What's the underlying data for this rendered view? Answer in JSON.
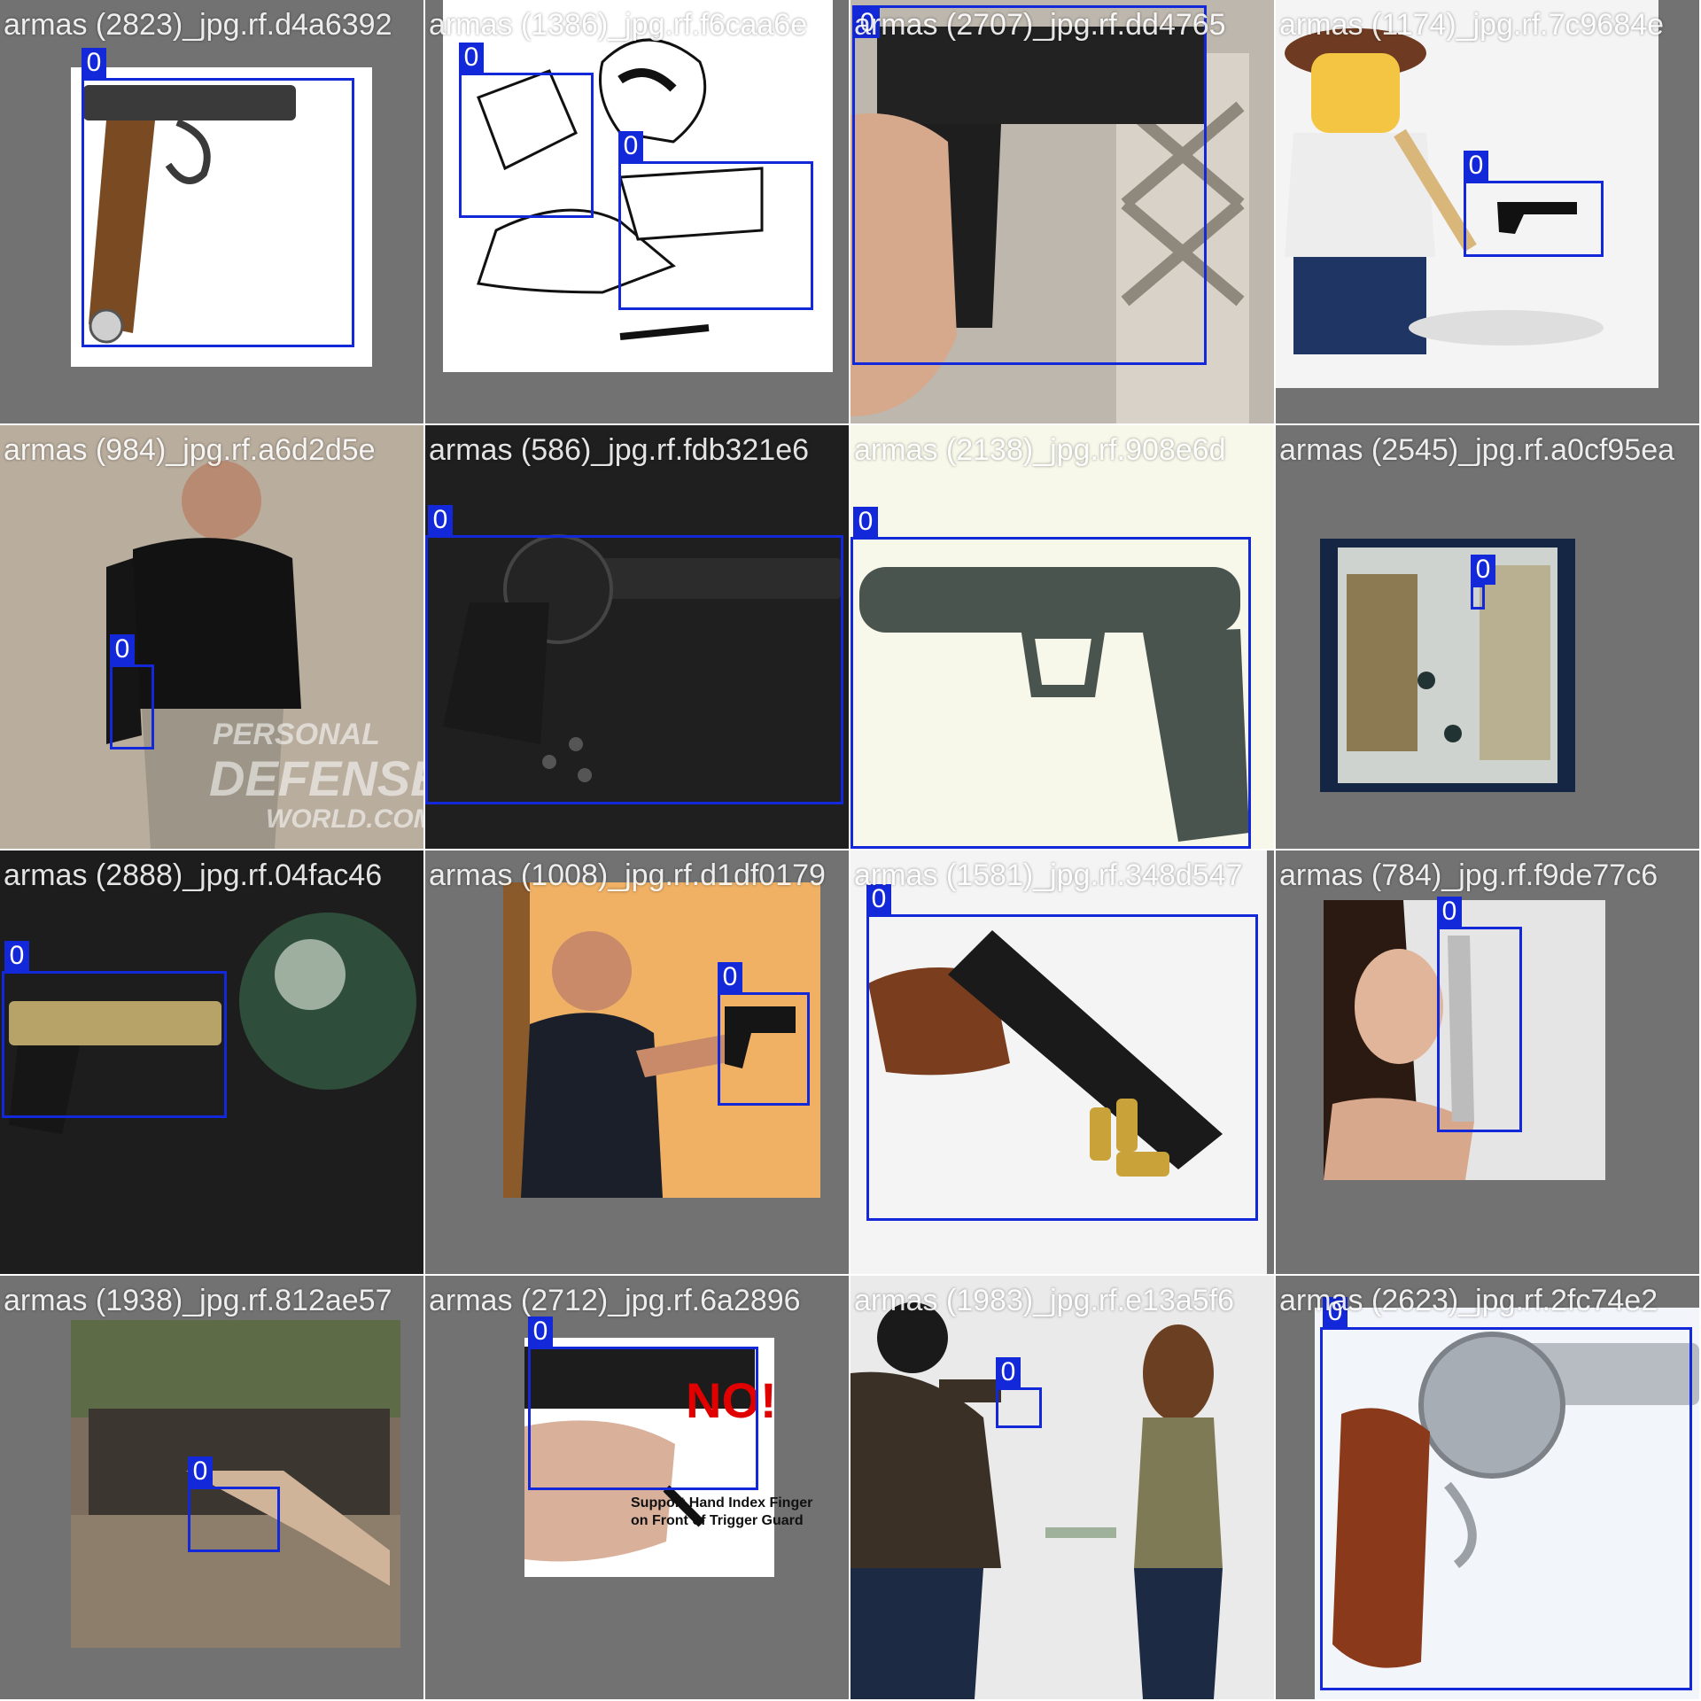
{
  "colors": {
    "box": "#1328d8",
    "tile_bg": "#727272",
    "label_text": "#ffffff"
  },
  "tiles": [
    {
      "filename": "armas (2823)_jpg.rf.d4a6392",
      "class_label": "0"
    },
    {
      "filename": "armas (1386)_jpg.rf.f6caa6e",
      "class_label": "0"
    },
    {
      "filename": "armas (2707)_jpg.rf.dd4765",
      "class_label": "0"
    },
    {
      "filename": "armas (1174)_jpg.rf.7c9684e",
      "class_label": "0"
    },
    {
      "filename": "armas (984)_jpg.rf.a6d2d5e",
      "class_label": "0",
      "watermark": "PERSONAL DEFENSE WORLD.COM"
    },
    {
      "filename": "armas (586)_jpg.rf.fdb321e6",
      "class_label": "0"
    },
    {
      "filename": "armas (2138)_jpg.rf.908e6d",
      "class_label": "0"
    },
    {
      "filename": "armas (2545)_jpg.rf.a0cf95ea",
      "class_label": "0"
    },
    {
      "filename": "armas (2888)_jpg.rf.04fac46",
      "class_label": "0"
    },
    {
      "filename": "armas (1008)_jpg.rf.d1df0179",
      "class_label": "0"
    },
    {
      "filename": "armas (1581)_jpg.rf.348d547",
      "class_label": "0"
    },
    {
      "filename": "armas (784)_jpg.rf.f9de77c6",
      "class_label": "0"
    },
    {
      "filename": "armas (1938)_jpg.rf.812ae57",
      "class_label": "0"
    },
    {
      "filename": "armas (2712)_jpg.rf.6a2896",
      "class_label": "0",
      "sign_text": "NO!",
      "caption_line1": "Support Hand Index Finger",
      "caption_line2": "on Front of Trigger Guard"
    },
    {
      "filename": "armas (1983)_jpg.rf.e13a5f6",
      "class_label": "0"
    },
    {
      "filename": "armas (2623)_jpg.rf.2fc74e2",
      "class_label": "0"
    }
  ]
}
